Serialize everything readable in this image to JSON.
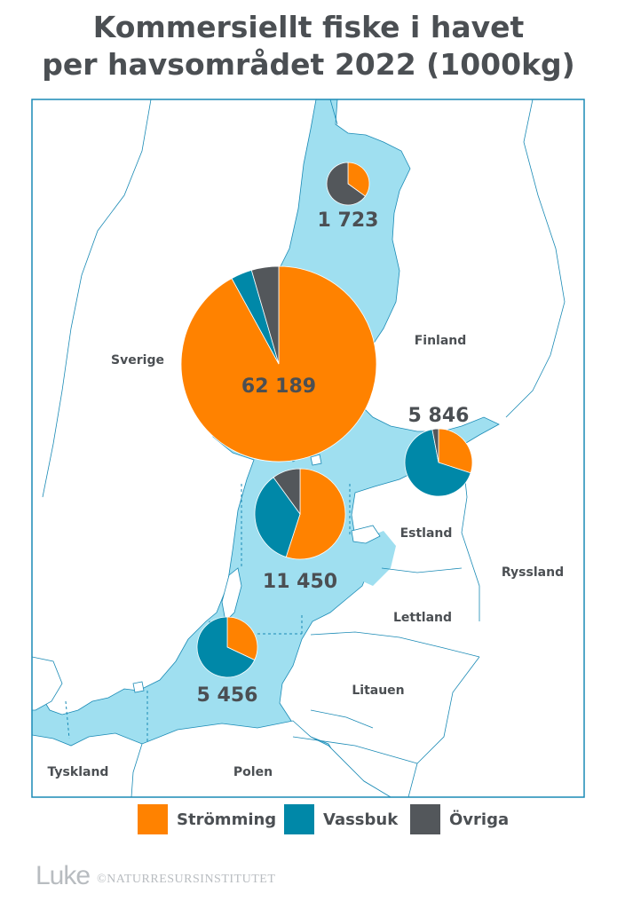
{
  "title": {
    "line1": "Kommersiellt fiske i havet",
    "line2": "per havsområdet 2022 (1000kg)"
  },
  "colors": {
    "water": "#9fdff0",
    "land": "#ffffff",
    "border": "#1a8ab5",
    "stromming": "#ff8200",
    "vassbuk": "#0088a8",
    "ovriga": "#53575b"
  },
  "countries": {
    "sverige": "Sverige",
    "finland": "Finland",
    "estland": "Estland",
    "ryssland": "Ryssland",
    "lettland": "Lettland",
    "litauen": "Litauen",
    "polen": "Polen",
    "tyskland": "Tyskland"
  },
  "chart_data": {
    "type": "pie",
    "unit": "1000kg",
    "categories": [
      "Strömming",
      "Vassbuk",
      "Övriga"
    ],
    "regions": [
      {
        "total": 1723,
        "total_label": "1 723",
        "values": [
          0.35,
          0.0,
          0.65
        ]
      },
      {
        "total": 62189,
        "total_label": "62 189",
        "values": [
          0.92,
          0.035,
          0.045
        ]
      },
      {
        "total": 5846,
        "total_label": "5 846",
        "values": [
          0.3,
          0.67,
          0.03
        ]
      },
      {
        "total": 11450,
        "total_label": "11 450",
        "values": [
          0.55,
          0.35,
          0.1
        ]
      },
      {
        "total": 5456,
        "total_label": "5 456",
        "values": [
          0.32,
          0.68,
          0.0
        ]
      }
    ]
  },
  "legend": [
    {
      "label": "Strömming",
      "color": "#ff8200"
    },
    {
      "label": "Vassbuk",
      "color": "#0088a8"
    },
    {
      "label": "Övriga",
      "color": "#53575b"
    }
  ],
  "footer": {
    "logo": "Luke",
    "credit": "©NATURRESURSINSTITUTET"
  }
}
